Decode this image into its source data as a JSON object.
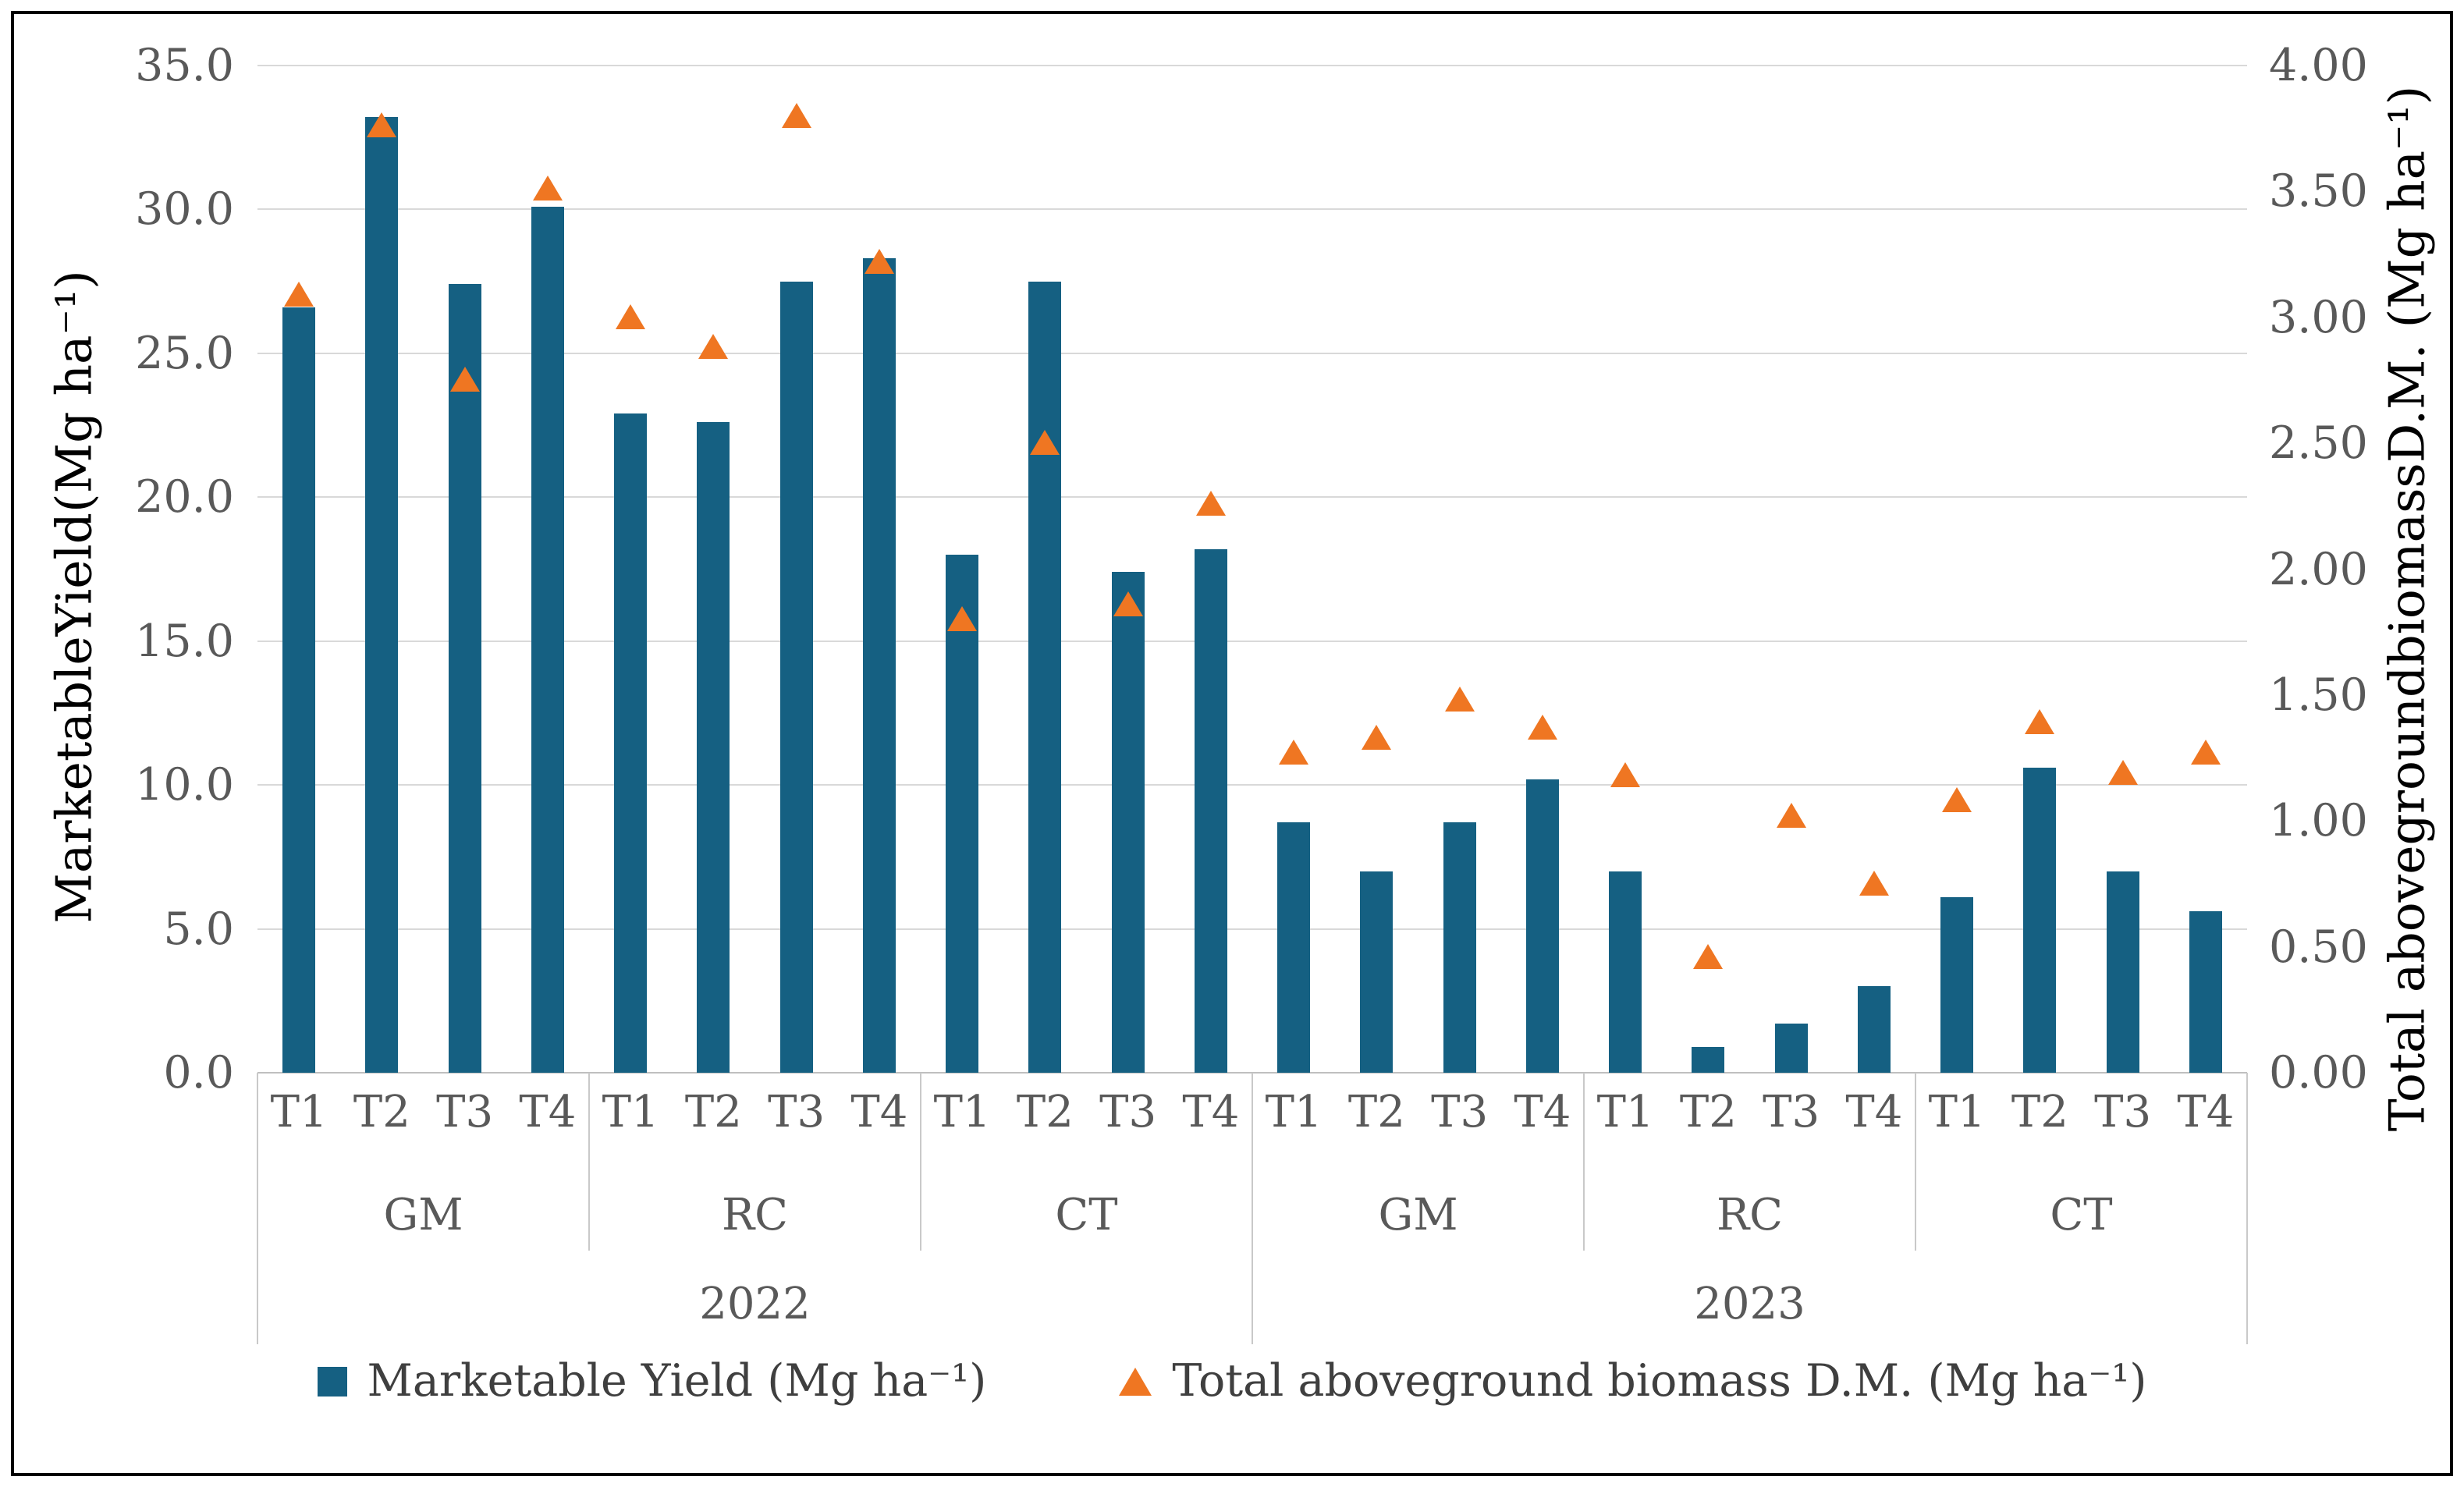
{
  "chart_data": {
    "type": "bar",
    "subtype": "combo bar + triangle scatter, dual y-axes",
    "title": "",
    "grid": "horizontal gridlines on",
    "legend_position": "bottom center",
    "left_axis": {
      "title": "MarketableYield(Mg ha⁻¹)",
      "min": 0,
      "max": 35,
      "tick_step": 5,
      "ticks": [
        "35.0",
        "30.0",
        "25.0",
        "20.0",
        "15.0",
        "10.0",
        "5.0",
        "0.0"
      ]
    },
    "right_axis": {
      "title": "Total abovegroundbiomassD.M. (Mg ha⁻¹)",
      "min": 0,
      "max": 4,
      "tick_step": 0.5,
      "ticks": [
        "4.00",
        "3.50",
        "3.00",
        "2.50",
        "2.00",
        "1.50",
        "1.00",
        "0.50",
        "0.00"
      ]
    },
    "series": [
      {
        "name": "Marketable Yield (Mg ha⁻¹)",
        "type": "bar",
        "axis": "left",
        "color": "#156082",
        "marker": "square"
      },
      {
        "name": "Total aboveground biomass D.M. (Mg ha⁻¹)",
        "type": "scatter",
        "axis": "right",
        "color": "#EF7622",
        "marker": "triangle"
      }
    ],
    "years": [
      {
        "label": "2022",
        "groups": [
          {
            "label": "GM",
            "categories": [
              "T1",
              "T2",
              "T3",
              "T4"
            ],
            "yield": [
              26.6,
              33.2,
              27.4,
              30.1
            ],
            "biomass": [
              3.09,
              3.76,
              2.75,
              3.51
            ]
          },
          {
            "label": "RC",
            "categories": [
              "T1",
              "T2",
              "T3",
              "T4"
            ],
            "yield": [
              22.9,
              22.6,
              27.5,
              28.3
            ],
            "biomass": [
              3.0,
              2.88,
              3.8,
              3.22
            ]
          },
          {
            "label": "CT",
            "categories": [
              "T1",
              "T2",
              "T3",
              "T4"
            ],
            "yield": [
              18.0,
              27.5,
              17.4,
              18.2
            ],
            "biomass": [
              1.8,
              2.5,
              1.86,
              2.26
            ]
          }
        ]
      },
      {
        "label": "2023",
        "groups": [
          {
            "label": "GM",
            "categories": [
              "T1",
              "T2",
              "T3",
              "T4"
            ],
            "yield": [
              8.7,
              7.0,
              8.7,
              10.2
            ],
            "biomass": [
              1.27,
              1.33,
              1.48,
              1.37
            ]
          },
          {
            "label": "RC",
            "categories": [
              "T1",
              "T2",
              "T3",
              "T4"
            ],
            "yield": [
              7.0,
              0.9,
              1.7,
              3.0
            ],
            "biomass": [
              1.18,
              0.46,
              1.02,
              0.75
            ]
          },
          {
            "label": "CT",
            "categories": [
              "T1",
              "T2",
              "T3",
              "T4"
            ],
            "yield": [
              6.1,
              10.6,
              7.0,
              5.6
            ],
            "biomass": [
              1.08,
              1.39,
              1.19,
              1.27
            ]
          }
        ]
      }
    ]
  },
  "legend": {
    "items": [
      {
        "label": "Marketable Yield (Mg ha⁻¹)",
        "marker": "blue-square"
      },
      {
        "label": "Total aboveground biomass D.M. (Mg ha⁻¹)",
        "marker": "orange-triangle"
      }
    ]
  },
  "colors": {
    "bar": "#156082",
    "triangle": "#EF7622",
    "gridline": "#D9D9D9",
    "axis_line": "#BFBFBF",
    "tick_text": "#595959",
    "axis_title_text": "#000000",
    "legend_text": "#3f3f3f",
    "figure_border": "#000000",
    "background": "#FFFFFF"
  }
}
